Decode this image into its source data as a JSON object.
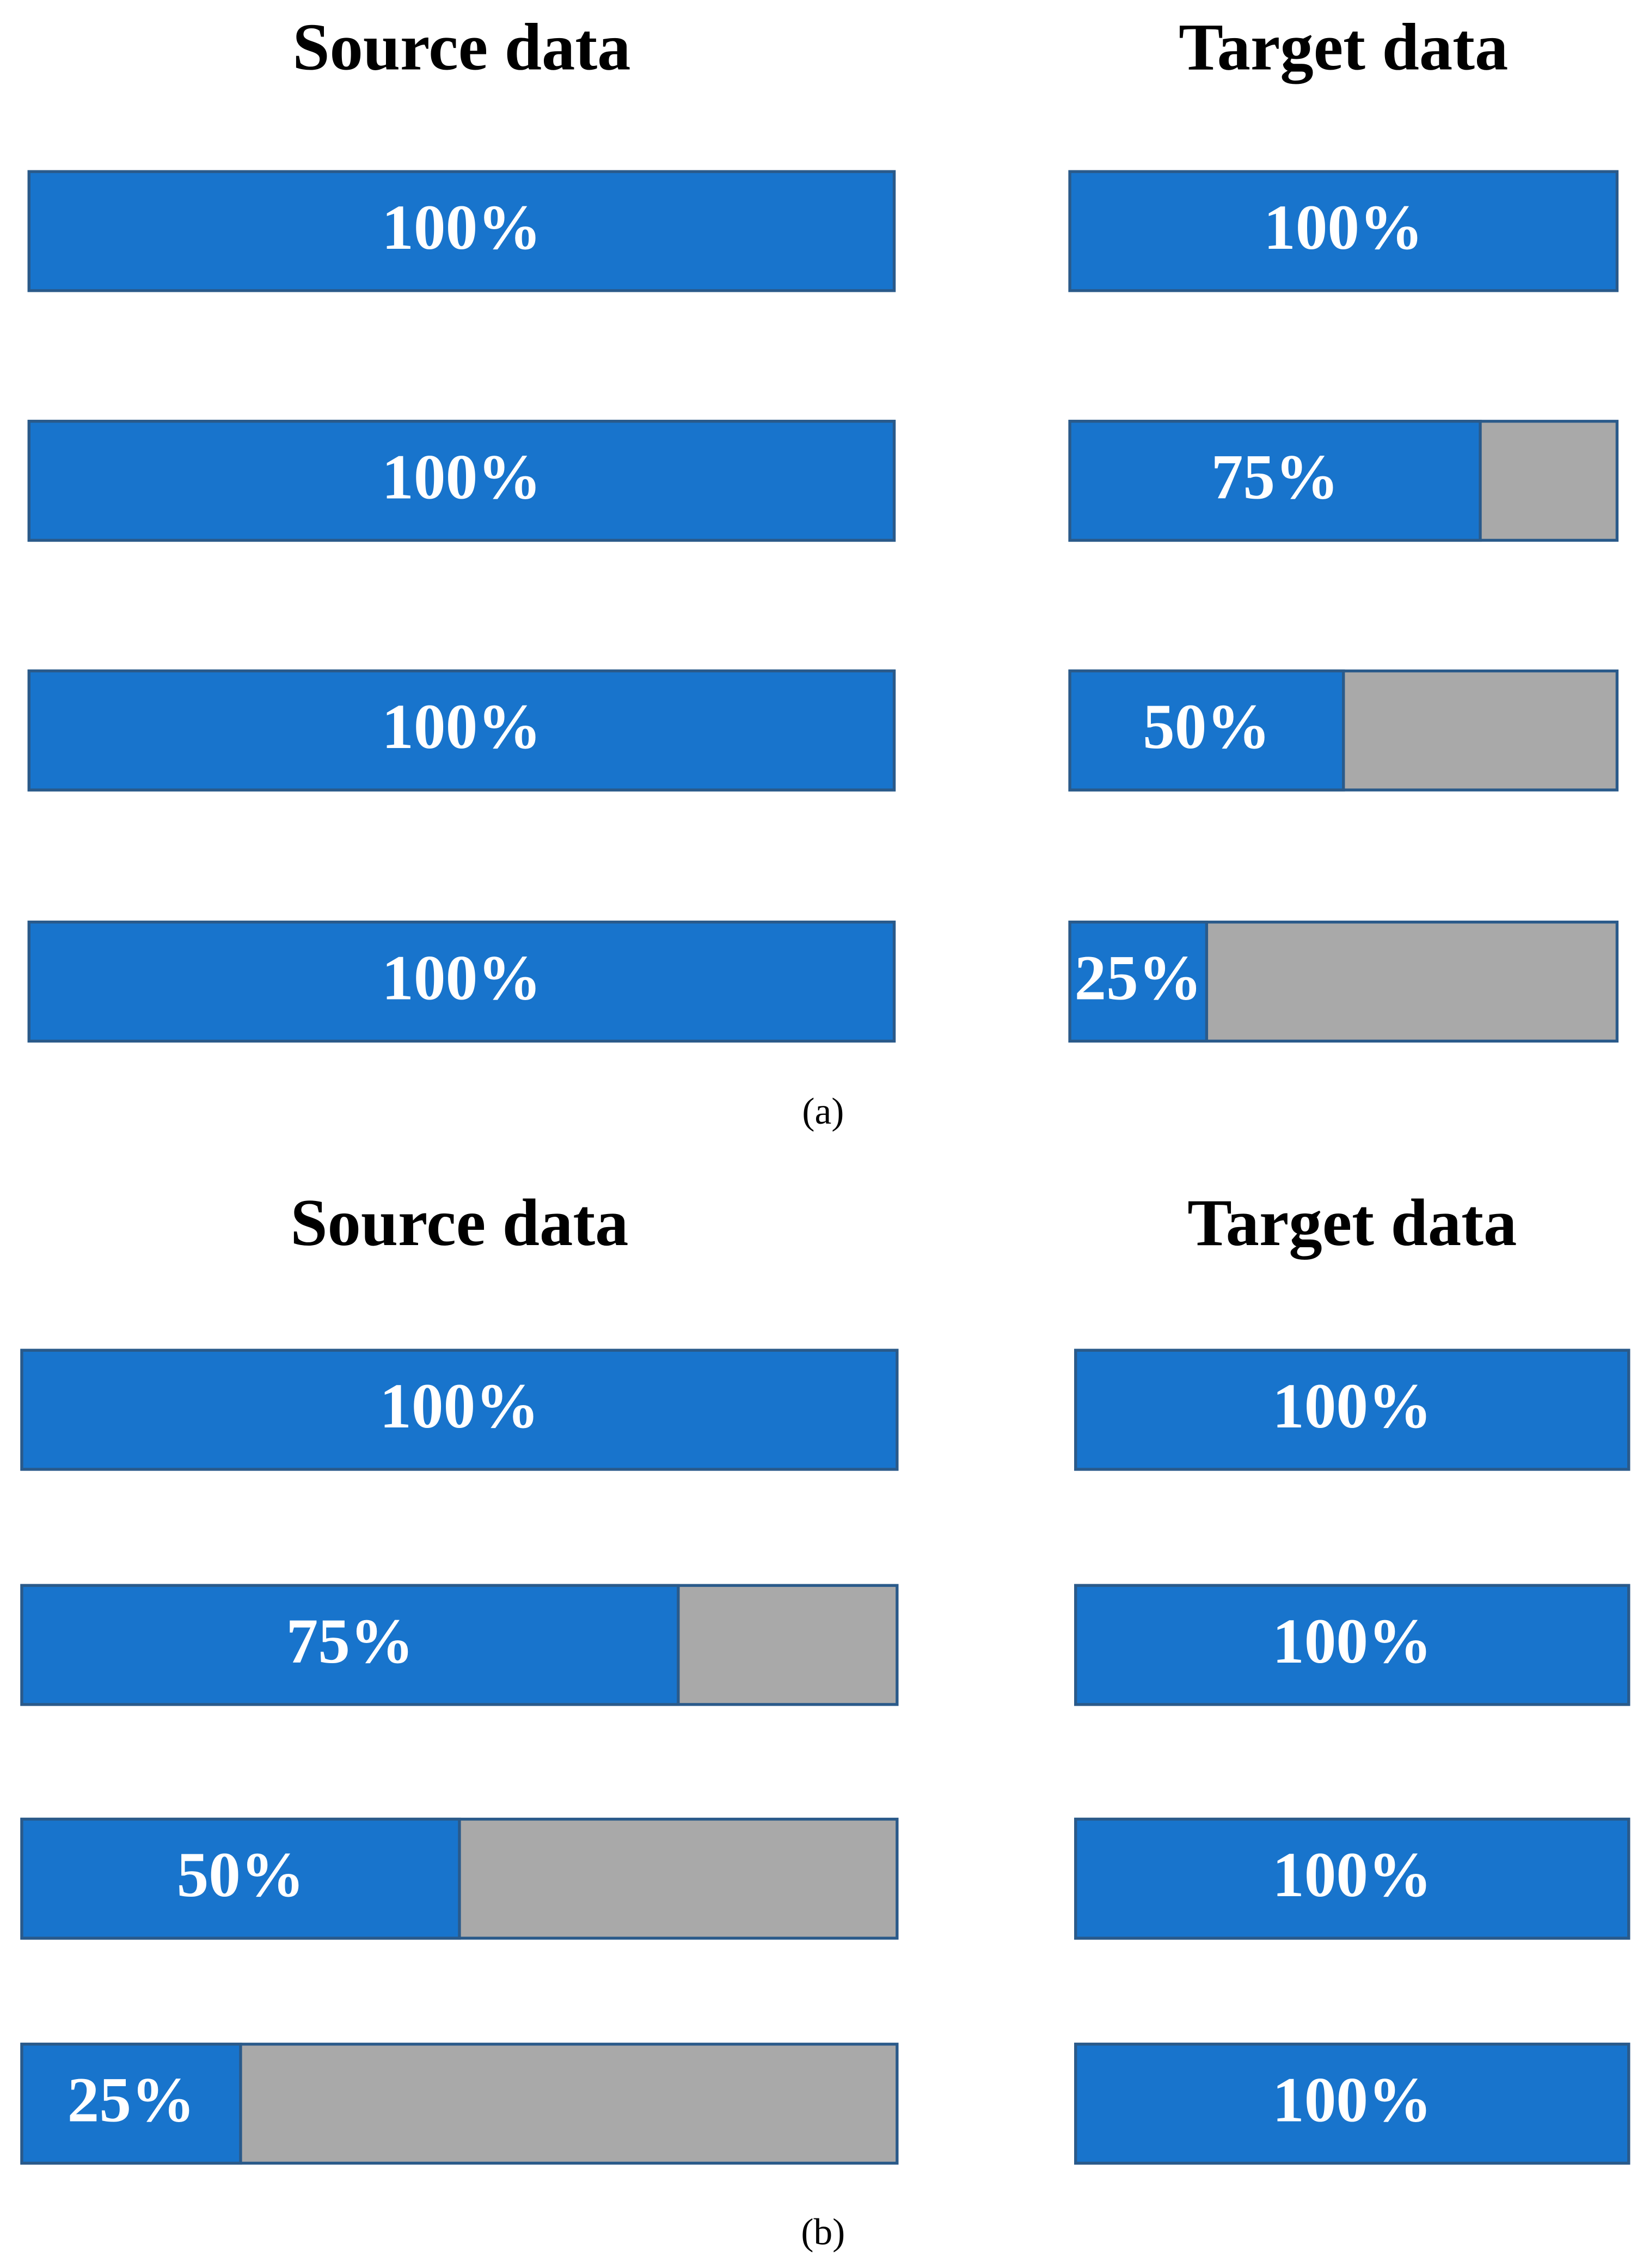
{
  "captions": [
    "(a)",
    "(b)"
  ],
  "chart_data": [
    {
      "type": "bar",
      "title": "Source data",
      "values": [
        100,
        100,
        100,
        100
      ],
      "value_labels": [
        "100%",
        "100%",
        "100%",
        "100%"
      ],
      "xlim": [
        0,
        100
      ],
      "color": "#1874cc",
      "background_color": "#a9a9a9"
    },
    {
      "type": "bar",
      "title": "Target data",
      "values": [
        100,
        75,
        50,
        25
      ],
      "value_labels": [
        "100%",
        "75%",
        "50%",
        "25%"
      ],
      "xlim": [
        0,
        100
      ],
      "color": "#1874cc",
      "background_color": "#a9a9a9"
    },
    {
      "type": "bar",
      "title": "Source data",
      "values": [
        100,
        75,
        50,
        25
      ],
      "value_labels": [
        "100%",
        "75%",
        "50%",
        "25%"
      ],
      "xlim": [
        0,
        100
      ],
      "color": "#1874cc",
      "background_color": "#a9a9a9"
    },
    {
      "type": "bar",
      "title": "Target data",
      "values": [
        100,
        100,
        100,
        100
      ],
      "value_labels": [
        "100%",
        "100%",
        "100%",
        "100%"
      ],
      "xlim": [
        0,
        100
      ],
      "color": "#1874cc",
      "background_color": "#a9a9a9"
    }
  ]
}
